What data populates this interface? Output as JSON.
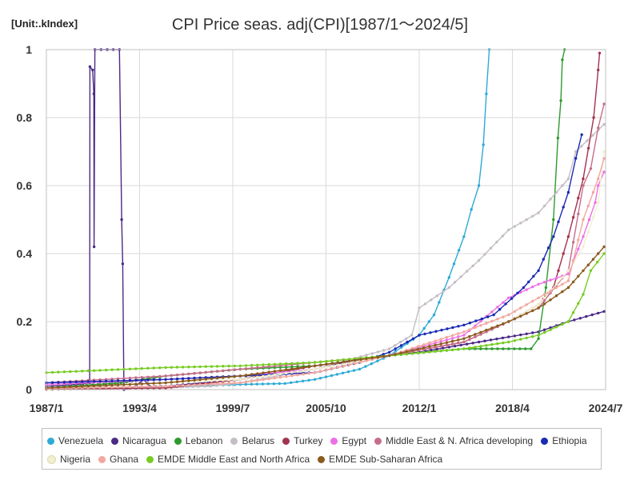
{
  "header": {
    "unit": "[Unit:.kIndex]",
    "title": "CPI Price seas. adj(CPI)[1987/1～2024/5]"
  },
  "chart_data": {
    "type": "line",
    "title": "CPI Price seas. adj(CPI)[1987/1～2024/5]",
    "unit": "[Unit:.kIndex]",
    "xlabel": "",
    "ylabel": "",
    "x_ticks": [
      "1987/1",
      "1993/4",
      "1999/7",
      "2005/10",
      "2012/1",
      "2018/4",
      "2024/7"
    ],
    "x_range": [
      1987.0,
      2024.5
    ],
    "y_ticks": [
      "0",
      "0.2",
      "0.4",
      "0.6",
      "0.8",
      "1"
    ],
    "ylim": [
      0,
      1
    ],
    "grid": true,
    "legend_position": "bottom",
    "series": [
      {
        "name": "Venezuela",
        "color": "#2eaad6",
        "points": [
          [
            1987.0,
            0.003
          ],
          [
            1995.0,
            0.008
          ],
          [
            2000.0,
            0.015
          ],
          [
            2003.0,
            0.018
          ],
          [
            2005.0,
            0.03
          ],
          [
            2008.0,
            0.06
          ],
          [
            2010.0,
            0.1
          ],
          [
            2012.0,
            0.16
          ],
          [
            2013.0,
            0.22
          ],
          [
            2014.0,
            0.33
          ],
          [
            2015.0,
            0.45
          ],
          [
            2015.5,
            0.53
          ],
          [
            2016.0,
            0.6
          ],
          [
            2016.3,
            0.72
          ],
          [
            2016.5,
            0.87
          ],
          [
            2016.7,
            1.0
          ]
        ]
      },
      {
        "name": "Nicaragua",
        "color": "#4b2a86",
        "points": [
          [
            1987.0,
            0.01
          ],
          [
            1989.0,
            0.015
          ],
          [
            1989.9,
            0.02
          ],
          [
            1989.92,
            0.95
          ],
          [
            1990.1,
            0.94
          ],
          [
            1990.18,
            0.87
          ],
          [
            1990.2,
            0.42
          ],
          [
            1990.25,
            1.0
          ],
          [
            1991.9,
            1.0
          ],
          [
            1992.05,
            0.5
          ],
          [
            1992.12,
            0.37
          ],
          [
            1992.2,
            0.0
          ],
          [
            1993.0,
            0.01
          ],
          [
            1993.5,
            0.03
          ],
          [
            1994.0,
            0.008
          ],
          [
            1995.0,
            0.01
          ],
          [
            2000.0,
            0.03
          ],
          [
            2005.0,
            0.06
          ],
          [
            2008.0,
            0.09
          ],
          [
            2012.0,
            0.11
          ],
          [
            2016.0,
            0.14
          ],
          [
            2020.0,
            0.17
          ],
          [
            2022.0,
            0.2
          ],
          [
            2024.4,
            0.23
          ]
        ]
      },
      {
        "name": "Lebanon",
        "color": "#2e9a2e",
        "points": [
          [
            1987.0,
            0.005
          ],
          [
            1992.0,
            0.02
          ],
          [
            1995.0,
            0.04
          ],
          [
            2000.0,
            0.06
          ],
          [
            2005.0,
            0.07
          ],
          [
            2010.0,
            0.1
          ],
          [
            2015.0,
            0.12
          ],
          [
            2018.0,
            0.12
          ],
          [
            2019.5,
            0.12
          ],
          [
            2020.0,
            0.15
          ],
          [
            2020.5,
            0.3
          ],
          [
            2021.0,
            0.5
          ],
          [
            2021.3,
            0.74
          ],
          [
            2021.5,
            0.85
          ],
          [
            2021.6,
            0.97
          ],
          [
            2021.75,
            1.0
          ]
        ]
      },
      {
        "name": "Belarus",
        "color": "#c5bdc5",
        "points": [
          [
            1987.0,
            0.005
          ],
          [
            1996.0,
            0.008
          ],
          [
            1998.0,
            0.01
          ],
          [
            2000.0,
            0.02
          ],
          [
            2005.0,
            0.06
          ],
          [
            2010.0,
            0.12
          ],
          [
            2011.5,
            0.16
          ],
          [
            2012.0,
            0.24
          ],
          [
            2014.0,
            0.3
          ],
          [
            2016.0,
            0.38
          ],
          [
            2018.0,
            0.47
          ],
          [
            2020.0,
            0.52
          ],
          [
            2022.0,
            0.62
          ],
          [
            2022.5,
            0.7
          ],
          [
            2024.4,
            0.78
          ]
        ]
      },
      {
        "name": "Turkey",
        "color": "#a3324e",
        "points": [
          [
            1987.0,
            0.001
          ],
          [
            1995.0,
            0.005
          ],
          [
            2000.0,
            0.03
          ],
          [
            2005.0,
            0.07
          ],
          [
            2010.0,
            0.1
          ],
          [
            2015.0,
            0.14
          ],
          [
            2018.0,
            0.2
          ],
          [
            2020.0,
            0.25
          ],
          [
            2021.0,
            0.3
          ],
          [
            2022.0,
            0.45
          ],
          [
            2023.0,
            0.62
          ],
          [
            2023.7,
            0.8
          ],
          [
            2024.0,
            0.94
          ],
          [
            2024.1,
            0.99
          ]
        ]
      },
      {
        "name": "Egypt",
        "color": "#ee6ee6",
        "points": [
          [
            1987.0,
            0.015
          ],
          [
            1995.0,
            0.03
          ],
          [
            2000.0,
            0.04
          ],
          [
            2005.0,
            0.06
          ],
          [
            2010.0,
            0.1
          ],
          [
            2015.0,
            0.16
          ],
          [
            2018.0,
            0.27
          ],
          [
            2020.0,
            0.31
          ],
          [
            2022.0,
            0.34
          ],
          [
            2023.0,
            0.45
          ],
          [
            2023.8,
            0.55
          ],
          [
            2024.0,
            0.6
          ],
          [
            2024.4,
            0.64
          ]
        ]
      },
      {
        "name": "Middle East & N. Africa developing",
        "color": "#c66d8a",
        "points": [
          [
            1987.0,
            0.02
          ],
          [
            1995.0,
            0.04
          ],
          [
            2000.0,
            0.06
          ],
          [
            2005.0,
            0.08
          ],
          [
            2010.0,
            0.1
          ],
          [
            2015.0,
            0.14
          ],
          [
            2018.0,
            0.2
          ],
          [
            2020.0,
            0.24
          ],
          [
            2022.0,
            0.35
          ],
          [
            2023.0,
            0.6
          ],
          [
            2023.5,
            0.65
          ],
          [
            2024.0,
            0.77
          ],
          [
            2024.4,
            0.84
          ]
        ]
      },
      {
        "name": "Ethiopia",
        "color": "#1a2ab3",
        "points": [
          [
            1987.0,
            0.02
          ],
          [
            1995.0,
            0.03
          ],
          [
            2000.0,
            0.04
          ],
          [
            2005.0,
            0.05
          ],
          [
            2008.0,
            0.08
          ],
          [
            2010.0,
            0.11
          ],
          [
            2012.0,
            0.16
          ],
          [
            2015.0,
            0.19
          ],
          [
            2017.0,
            0.22
          ],
          [
            2019.0,
            0.3
          ],
          [
            2020.0,
            0.35
          ],
          [
            2021.0,
            0.45
          ],
          [
            2022.0,
            0.58
          ],
          [
            2022.5,
            0.68
          ],
          [
            2022.9,
            0.75
          ]
        ]
      },
      {
        "name": "Nigeria",
        "color": "#f0f0d0",
        "points": [
          [
            1987.0,
            0.003
          ],
          [
            1995.0,
            0.02
          ],
          [
            2000.0,
            0.03
          ],
          [
            2005.0,
            0.06
          ],
          [
            2010.0,
            0.1
          ],
          [
            2015.0,
            0.15
          ],
          [
            2018.0,
            0.2
          ],
          [
            2020.0,
            0.25
          ],
          [
            2022.0,
            0.35
          ],
          [
            2023.0,
            0.42
          ],
          [
            2024.0,
            0.55
          ],
          [
            2024.4,
            0.7
          ]
        ]
      },
      {
        "name": "Ghana",
        "color": "#f2a89e",
        "points": [
          [
            1987.0,
            0.003
          ],
          [
            1995.0,
            0.01
          ],
          [
            2000.0,
            0.02
          ],
          [
            2005.0,
            0.05
          ],
          [
            2010.0,
            0.1
          ],
          [
            2015.0,
            0.17
          ],
          [
            2018.0,
            0.22
          ],
          [
            2020.0,
            0.27
          ],
          [
            2022.0,
            0.32
          ],
          [
            2023.0,
            0.5
          ],
          [
            2024.0,
            0.62
          ],
          [
            2024.4,
            0.68
          ]
        ]
      },
      {
        "name": "EMDE Middle East and North Africa",
        "color": "#77cc22",
        "points": [
          [
            1987.0,
            0.05
          ],
          [
            1995.0,
            0.065
          ],
          [
            2000.0,
            0.07
          ],
          [
            2005.0,
            0.08
          ],
          [
            2010.0,
            0.1
          ],
          [
            2015.0,
            0.12
          ],
          [
            2018.0,
            0.14
          ],
          [
            2020.0,
            0.16
          ],
          [
            2022.0,
            0.2
          ],
          [
            2023.0,
            0.28
          ],
          [
            2023.5,
            0.35
          ],
          [
            2024.4,
            0.4
          ]
        ]
      },
      {
        "name": "EMDE Sub-Saharan Africa",
        "color": "#8b5a1e",
        "points": [
          [
            1987.0,
            0.005
          ],
          [
            1995.0,
            0.02
          ],
          [
            2000.0,
            0.04
          ],
          [
            2005.0,
            0.07
          ],
          [
            2010.0,
            0.1
          ],
          [
            2015.0,
            0.15
          ],
          [
            2018.0,
            0.2
          ],
          [
            2020.0,
            0.24
          ],
          [
            2022.0,
            0.3
          ],
          [
            2023.0,
            0.35
          ],
          [
            2024.0,
            0.4
          ],
          [
            2024.4,
            0.42
          ]
        ]
      }
    ]
  }
}
